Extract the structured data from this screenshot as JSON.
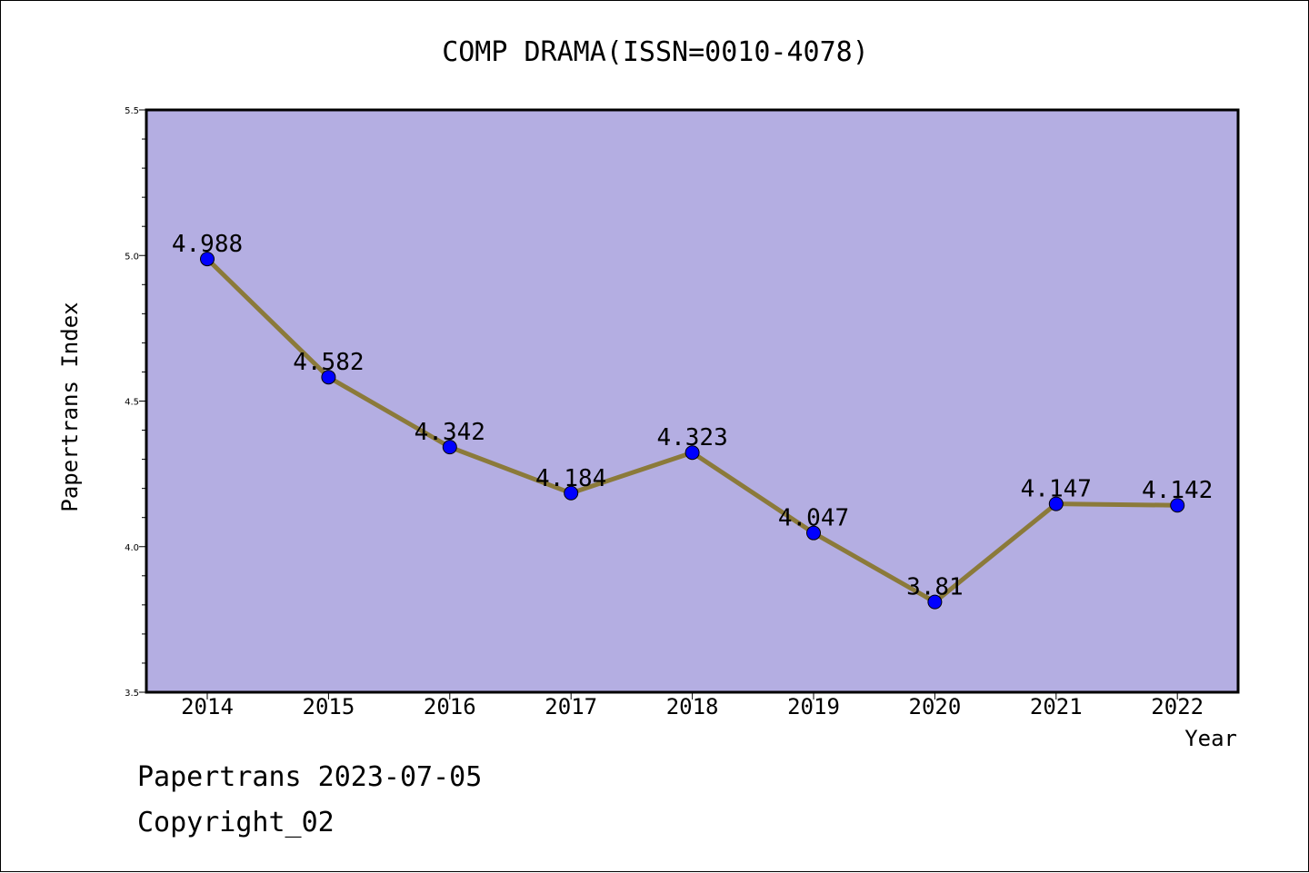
{
  "chart_data": {
    "type": "line",
    "title": "COMP DRAMA(ISSN=0010-4078)",
    "xlabel": "Year",
    "ylabel": "Papertrans Index",
    "x": [
      "2014",
      "2015",
      "2016",
      "2017",
      "2018",
      "2019",
      "2020",
      "2021",
      "2022"
    ],
    "series": [
      {
        "values": [
          4.988,
          4.582,
          4.342,
          4.184,
          4.323,
          4.047,
          3.81,
          4.147,
          4.142
        ],
        "data_labels": [
          "4.988",
          "4.582",
          "4.342",
          "4.184",
          "4.323",
          "4.047",
          "3.81",
          "4.147",
          "4.142"
        ],
        "line_color": "#8b7a3a",
        "marker_color": "#0000ff"
      }
    ],
    "ylim": [
      3.5,
      5.5
    ],
    "yticks": [
      "3.5",
      "4.0",
      "4.5",
      "5.0",
      "5.5"
    ],
    "minor_ytick_step": 0.1,
    "grid": false,
    "legend": "none",
    "plot_background": "#b4aee2"
  },
  "footer": {
    "source": "Papertrans 2023-07-05",
    "copyright": "Copyright_02"
  }
}
